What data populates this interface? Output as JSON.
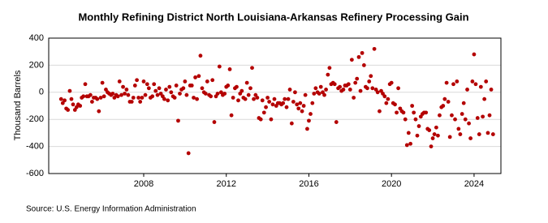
{
  "chart_data": {
    "type": "scatter",
    "title": "Monthly Refining District North Louisiana-Arkansas Refinery Processing Gain",
    "y_label": "Thousand Barrels",
    "source": "Source: U.S. Energy Information Administration",
    "color": "#b40000",
    "xlim": [
      2003.4,
      2025.3
    ],
    "xticks": [
      2008,
      2012,
      2016,
      2020,
      2024
    ],
    "ylim": [
      -600,
      400
    ],
    "yticks": [
      -600,
      -400,
      -200,
      0,
      200,
      400
    ],
    "grid": true,
    "x": [
      2004,
      2004.08,
      2004.17,
      2004.25,
      2004.33,
      2004.42,
      2004.5,
      2004.58,
      2004.67,
      2004.75,
      2004.83,
      2004.92,
      2005,
      2005.08,
      2005.17,
      2005.25,
      2005.33,
      2005.42,
      2005.5,
      2005.58,
      2005.67,
      2005.75,
      2005.83,
      2005.92,
      2006,
      2006.08,
      2006.17,
      2006.25,
      2006.33,
      2006.42,
      2006.5,
      2006.58,
      2006.67,
      2006.75,
      2006.83,
      2006.92,
      2007,
      2007.08,
      2007.17,
      2007.25,
      2007.33,
      2007.42,
      2007.5,
      2007.58,
      2007.67,
      2007.75,
      2007.83,
      2007.92,
      2008,
      2008.08,
      2008.17,
      2008.25,
      2008.33,
      2008.42,
      2008.5,
      2008.58,
      2008.67,
      2008.75,
      2008.83,
      2008.92,
      2009,
      2009.08,
      2009.17,
      2009.25,
      2009.33,
      2009.42,
      2009.5,
      2009.58,
      2009.67,
      2009.75,
      2009.83,
      2009.92,
      2010,
      2010.08,
      2010.17,
      2010.25,
      2010.33,
      2010.42,
      2010.5,
      2010.58,
      2010.67,
      2010.75,
      2010.83,
      2010.92,
      2011,
      2011.08,
      2011.17,
      2011.25,
      2011.33,
      2011.42,
      2011.5,
      2011.58,
      2011.67,
      2011.75,
      2011.83,
      2011.92,
      2012,
      2012.08,
      2012.17,
      2012.25,
      2012.33,
      2012.42,
      2012.5,
      2012.58,
      2012.67,
      2012.75,
      2012.83,
      2012.92,
      2013,
      2013.08,
      2013.17,
      2013.25,
      2013.33,
      2013.42,
      2013.5,
      2013.58,
      2013.67,
      2013.75,
      2013.83,
      2013.92,
      2014,
      2014.08,
      2014.17,
      2014.25,
      2014.33,
      2014.42,
      2014.5,
      2014.58,
      2014.67,
      2014.75,
      2014.83,
      2014.92,
      2015,
      2015.08,
      2015.17,
      2015.25,
      2015.33,
      2015.42,
      2015.5,
      2015.58,
      2015.67,
      2015.75,
      2015.83,
      2015.92,
      2016,
      2016.08,
      2016.17,
      2016.25,
      2016.33,
      2016.42,
      2016.5,
      2016.58,
      2016.67,
      2016.75,
      2016.83,
      2016.92,
      2017,
      2017.08,
      2017.17,
      2017.25,
      2017.33,
      2017.42,
      2017.5,
      2017.58,
      2017.67,
      2017.75,
      2017.83,
      2017.92,
      2018,
      2018.08,
      2018.17,
      2018.25,
      2018.33,
      2018.42,
      2018.5,
      2018.58,
      2018.67,
      2018.75,
      2018.83,
      2018.92,
      2019,
      2019.08,
      2019.17,
      2019.25,
      2019.33,
      2019.42,
      2019.5,
      2019.58,
      2019.67,
      2019.75,
      2019.83,
      2019.92,
      2020,
      2020.08,
      2020.17,
      2020.25,
      2020.33,
      2020.42,
      2020.5,
      2020.58,
      2020.67,
      2020.75,
      2020.83,
      2020.92,
      2021,
      2021.08,
      2021.17,
      2021.25,
      2021.33,
      2021.42,
      2021.5,
      2021.58,
      2021.67,
      2021.75,
      2021.83,
      2021.92,
      2022,
      2022.08,
      2022.17,
      2022.25,
      2022.33,
      2022.42,
      2022.5,
      2022.58,
      2022.67,
      2022.75,
      2022.83,
      2022.92,
      2023,
      2023.08,
      2023.17,
      2023.25,
      2023.33,
      2023.42,
      2023.5,
      2023.58,
      2023.67,
      2023.75,
      2023.83,
      2023.92,
      2024,
      2024.08,
      2024.17,
      2024.25,
      2024.33,
      2024.42,
      2024.5,
      2024.58,
      2024.67,
      2024.75,
      2024.83,
      2024.92
    ],
    "values": [
      -50,
      -80,
      -60,
      -120,
      -130,
      10,
      -50,
      -90,
      -130,
      -110,
      -90,
      -100,
      -40,
      -30,
      60,
      -30,
      -30,
      -20,
      -70,
      -40,
      -40,
      -50,
      -140,
      -40,
      70,
      -30,
      20,
      0,
      -10,
      -20,
      -10,
      -40,
      -20,
      -30,
      80,
      -20,
      40,
      -10,
      20,
      -20,
      -70,
      -70,
      -40,
      50,
      90,
      -40,
      -70,
      -40,
      80,
      -20,
      60,
      30,
      -40,
      -30,
      60,
      10,
      -20,
      30,
      -10,
      -30,
      -50,
      20,
      -60,
      40,
      0,
      -30,
      -40,
      50,
      -210,
      -10,
      20,
      30,
      80,
      -20,
      -450,
      50,
      50,
      -40,
      110,
      -50,
      120,
      270,
      30,
      0,
      -10,
      80,
      -20,
      -30,
      90,
      -220,
      -30,
      -10,
      190,
      0,
      -20,
      -10,
      40,
      50,
      170,
      -170,
      -40,
      30,
      40,
      -60,
      -10,
      10,
      -40,
      -50,
      70,
      -20,
      30,
      180,
      -50,
      -20,
      -40,
      -190,
      -200,
      -60,
      -150,
      -110,
      -40,
      -70,
      -200,
      -90,
      -50,
      -100,
      -80,
      -80,
      -90,
      -80,
      -50,
      -110,
      -50,
      20,
      -230,
      -70,
      0,
      -90,
      -120,
      -80,
      -140,
      -100,
      -20,
      -270,
      -210,
      -160,
      -80,
      -10,
      30,
      0,
      -10,
      40,
      0,
      -20,
      20,
      130,
      180,
      60,
      70,
      60,
      -220,
      30,
      40,
      10,
      20,
      50,
      50,
      60,
      20,
      240,
      -40,
      70,
      100,
      260,
      10,
      290,
      200,
      40,
      30,
      80,
      120,
      30,
      320,
      20,
      0,
      -140,
      10,
      -10,
      -30,
      -80,
      -50,
      60,
      70,
      -80,
      -90,
      -150,
      30,
      -120,
      -140,
      -150,
      -200,
      -390,
      -300,
      -380,
      -100,
      -150,
      -200,
      -320,
      -250,
      -180,
      -160,
      -150,
      -150,
      -270,
      -280,
      -400,
      -340,
      -310,
      -260,
      -320,
      -170,
      -110,
      -100,
      -50,
      70,
      -70,
      -330,
      -170,
      60,
      -200,
      80,
      -270,
      -310,
      -160,
      -80,
      -200,
      20,
      -230,
      -340,
      80,
      280,
      60,
      -190,
      -310,
      40,
      -180,
      -50,
      80,
      -300,
      -170,
      20,
      -310
    ]
  }
}
